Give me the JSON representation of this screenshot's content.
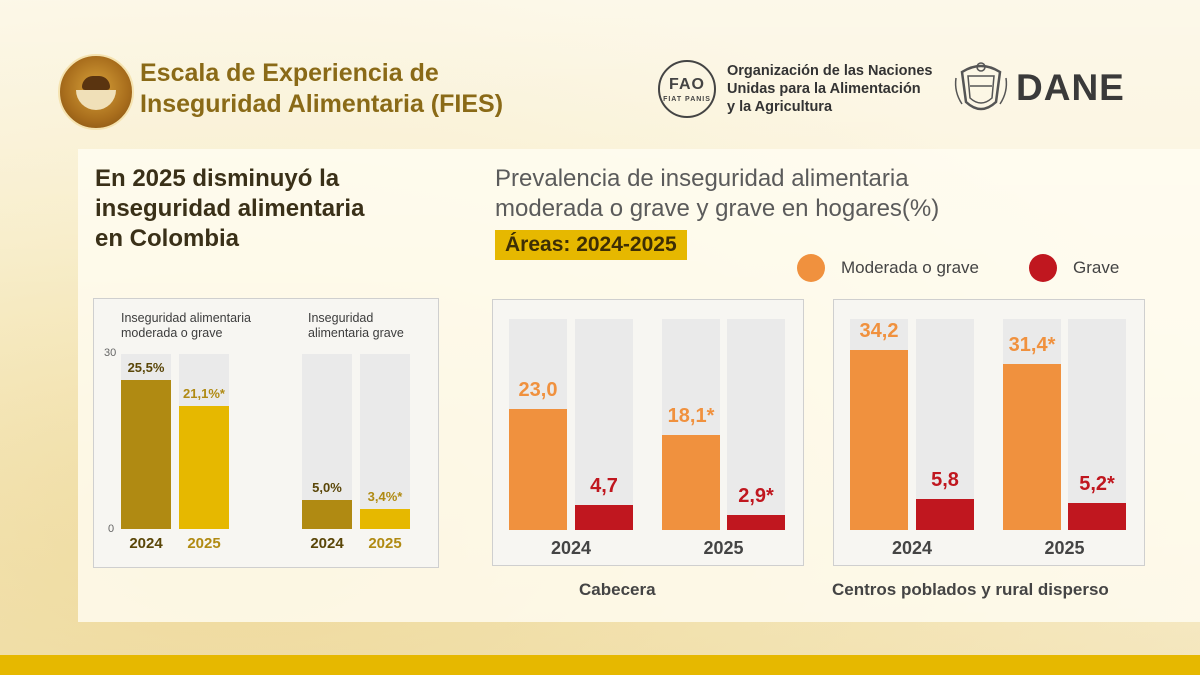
{
  "header": {
    "title_line1": "Escala de Experiencia de",
    "title_line2": "Inseguridad Alimentaria (FIES)",
    "fao_abbrev": "FAO",
    "fao_motto": "FIAT PANIS",
    "fao_name_line1": "Organización de las Naciones",
    "fao_name_line2": "Unidas para la Alimentación",
    "fao_name_line3": "y la Agricultura",
    "dane_logo": "DANE"
  },
  "headline": {
    "line1": "En 2025 disminuyó la",
    "line2": "inseguridad alimentaria",
    "line3": "en Colombia"
  },
  "chart_title": {
    "line1": "Prevalencia de inseguridad alimentaria",
    "line2": "moderada o grave y grave en hogares(%)",
    "badge": "Áreas: 2024-2025"
  },
  "legend": [
    {
      "label": "Moderada o grave",
      "color": "#f0913e"
    },
    {
      "label": "Grave",
      "color": "#c0171f"
    }
  ],
  "colors": {
    "gold_dark": "#b08a12",
    "gold_light": "#e6b800",
    "orange": "#f0913e",
    "red": "#c0171f",
    "track": "#eaeaea",
    "bottom_bar": "#e6b800"
  },
  "chart_data": [
    {
      "type": "bar",
      "title": "",
      "ylim": [
        0,
        30
      ],
      "yticks": [
        "30",
        "0"
      ],
      "groups": [
        {
          "label_line1": "Inseguridad alimentaria",
          "label_line2": "moderada o grave",
          "categories": [
            "2024",
            "2025"
          ],
          "values": [
            25.5,
            21.1
          ],
          "value_labels": [
            "25,5%",
            "21,1%*"
          ]
        },
        {
          "label_line1": "Inseguridad",
          "label_line2": "alimentaria grave",
          "categories": [
            "2024",
            "2025"
          ],
          "values": [
            5.0,
            3.4
          ],
          "value_labels": [
            "5,0%",
            "3,4%*"
          ]
        }
      ]
    },
    {
      "type": "bar",
      "area": "Cabecera",
      "ylim": [
        0,
        40
      ],
      "categories": [
        "2024",
        "2025"
      ],
      "series": [
        {
          "name": "Moderada o grave",
          "values": [
            23.0,
            18.1
          ],
          "value_labels": [
            "23,0",
            "18,1*"
          ]
        },
        {
          "name": "Grave",
          "values": [
            4.7,
            2.9
          ],
          "value_labels": [
            "4,7",
            "2,9*"
          ]
        }
      ]
    },
    {
      "type": "bar",
      "area": "Centros poblados y rural disperso",
      "ylim": [
        0,
        40
      ],
      "categories": [
        "2024",
        "2025"
      ],
      "series": [
        {
          "name": "Moderada o grave",
          "values": [
            34.2,
            31.4
          ],
          "value_labels": [
            "34,2",
            "31,4*"
          ]
        },
        {
          "name": "Grave",
          "values": [
            5.8,
            5.2
          ],
          "value_labels": [
            "5,8",
            "5,2*"
          ]
        }
      ]
    }
  ]
}
